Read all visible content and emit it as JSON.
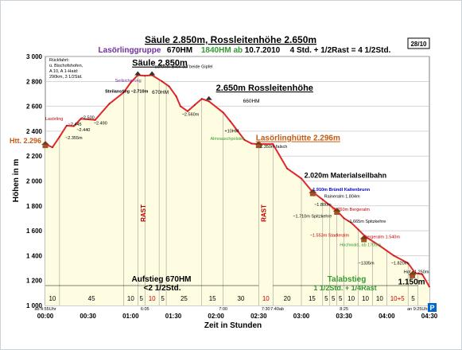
{
  "chart_data": {
    "type": "area",
    "title": "Säule 2.850m, Rossleitenhöhe 2.650m",
    "subtitle": {
      "group": "Lasörlinggruppe",
      "hm": "670HM",
      "start": "1840HM ab",
      "date": "10.7.2010",
      "duration": "4 Std. + 1/2Rast = 4 1/2Std."
    },
    "tour_number": "28/10",
    "xlabel": "Zeit in Stunden",
    "ylabel": "Höhen in m",
    "ylim": [
      1000,
      3000
    ],
    "xlim": [
      0,
      270
    ],
    "x_ticks": [
      {
        "v": 0,
        "label": "00:00"
      },
      {
        "v": 30,
        "label": "00:30"
      },
      {
        "v": 60,
        "label": "01:00"
      },
      {
        "v": 90,
        "label": "01:30"
      },
      {
        "v": 120,
        "label": "02:00"
      },
      {
        "v": 150,
        "label": "02:30"
      },
      {
        "v": 180,
        "label": "03:00"
      },
      {
        "v": 210,
        "label": "03:30"
      },
      {
        "v": 240,
        "label": "04:00"
      },
      {
        "v": 270,
        "label": "04:30"
      }
    ],
    "y_ticks": [
      {
        "v": 1000,
        "label": "1 000"
      },
      {
        "v": 1200,
        "label": "1 200"
      },
      {
        "v": 1400,
        "label": "1 400"
      },
      {
        "v": 1600,
        "label": "1 600"
      },
      {
        "v": 1800,
        "label": "1 800"
      },
      {
        "v": 2000,
        "label": "2 000"
      },
      {
        "v": 2200,
        "label": "2 200"
      },
      {
        "v": 2400,
        "label": "2 400"
      },
      {
        "v": 2600,
        "label": "2 600"
      },
      {
        "v": 2800,
        "label": "2 800"
      },
      {
        "v": 3000,
        "label": "3 000"
      }
    ],
    "series": [
      {
        "x": [
          0,
          5,
          10,
          15,
          20,
          25,
          35,
          45,
          55,
          60,
          65,
          70,
          75,
          82,
          87,
          92,
          95,
          100,
          105,
          110,
          115,
          125,
          130,
          140,
          145,
          150,
          160,
          170,
          180,
          188,
          195,
          205,
          210,
          215,
          220,
          225,
          235,
          245,
          255,
          260,
          265,
          270
        ],
        "y": [
          2296,
          2270,
          2355,
          2445,
          2440,
          2500,
          2490,
          2620,
          2710,
          2790,
          2850,
          2845,
          2850,
          2800,
          2760,
          2680,
          2600,
          2560,
          2610,
          2660,
          2640,
          2550,
          2480,
          2330,
          2300,
          2296,
          2296,
          2100,
          2020,
          1910,
          1850,
          1760,
          1700,
          1665,
          1610,
          1553,
          1480,
          1400,
          1340,
          1260,
          1250,
          1150
        ]
      }
    ],
    "annotations": [
      {
        "x": 42,
        "y": 2710,
        "text": "Steilanstieg ~2.710m",
        "color": "#000000",
        "bold": true
      },
      {
        "x": 49,
        "y": 2795,
        "text": "Seilsicherung",
        "color": "#7030a0",
        "bold": false
      },
      {
        "x": 0,
        "y": 2490,
        "text": "Lasörling",
        "color": "#c00000",
        "bold": false
      },
      {
        "x": 16,
        "y": 2445,
        "text": "~2.445",
        "color": "#000000",
        "bold": false
      },
      {
        "x": 25,
        "y": 2500,
        "text": "~2.500",
        "color": "#000000",
        "bold": false
      },
      {
        "x": 22,
        "y": 2398,
        "text": "~2.440",
        "color": "#000000",
        "bold": false
      },
      {
        "x": 34,
        "y": 2455,
        "text": "~2.490",
        "color": "#000000",
        "bold": false
      },
      {
        "x": 14,
        "y": 2335,
        "text": "~2.355m",
        "color": "#000000",
        "bold": false
      },
      {
        "x": 96,
        "y": 2525,
        "text": "~2.560m",
        "color": "#000000",
        "bold": false
      },
      {
        "x": 126,
        "y": 2390,
        "text": "+10HM",
        "color": "#000000",
        "bold": false
      },
      {
        "x": 116,
        "y": 2330,
        "text": "Almrauschpolster",
        "color": "#339933",
        "bold": false
      },
      {
        "x": 77,
        "y": 2908,
        "text": "schöner Blick auf beide Gipfel",
        "color": "#000000",
        "bold": false
      },
      {
        "x": 151,
        "y": 2265,
        "text": "2.350m falsch",
        "color": "#000000",
        "bold": false
      },
      {
        "x": 188,
        "y": 1920,
        "text": "1.910m Bründl Kaltenbrunn",
        "color": "#0000cc",
        "bold": true
      },
      {
        "x": 196,
        "y": 1865,
        "text": "Raineralm 1.804m",
        "color": "#000000",
        "bold": false
      },
      {
        "x": 189,
        "y": 1800,
        "text": "~1.800m",
        "color": "#000000",
        "bold": false
      },
      {
        "x": 201,
        "y": 1760,
        "text": "~1.760m Bergeralm",
        "color": "#c00000",
        "bold": false
      },
      {
        "x": 174,
        "y": 1705,
        "text": "~1.710m Spitzkehre",
        "color": "#000000",
        "bold": false
      },
      {
        "x": 212,
        "y": 1665,
        "text": "~1.665m Spitzkehre",
        "color": "#000000",
        "bold": false
      },
      {
        "x": 186,
        "y": 1553,
        "text": "~1.553m Stadleralm",
        "color": "#c00000",
        "bold": false
      },
      {
        "x": 224,
        "y": 1540,
        "text": "Bergeralm 1.540m",
        "color": "#c00000",
        "bold": false
      },
      {
        "x": 207,
        "y": 1475,
        "text": "Hochwald, ab 1700m",
        "color": "#339933",
        "bold": false
      },
      {
        "x": 220,
        "y": 1330,
        "text": "~1335m",
        "color": "#000000",
        "bold": false
      },
      {
        "x": 243,
        "y": 1330,
        "text": "~1.820m",
        "color": "#000000",
        "bold": false
      },
      {
        "x": 252,
        "y": 1260,
        "text": "Hof ~1.250m",
        "color": "#000000",
        "bold": false
      }
    ],
    "place_labels": [
      {
        "x": 61,
        "y": 2925,
        "text": "Säule 2.850m",
        "color": "#000000",
        "underline": true,
        "size": 11
      },
      {
        "x": 120,
        "y": 2725,
        "text": "2.650m Rossleitenhöhe",
        "color": "#000000",
        "underline": true,
        "size": 11
      },
      {
        "x": 148,
        "y": 2325,
        "text": "Lasörlinghütte 2.296m",
        "color": "#c55a11",
        "underline": true,
        "size": 10
      },
      {
        "x": 182,
        "y": 2025,
        "text": "2.020m Materialseilbahn",
        "color": "#000000",
        "underline": false,
        "size": 9
      },
      {
        "x": 248,
        "y": 1170,
        "text": "1.150m",
        "color": "#000000",
        "underline": false,
        "size": 10
      }
    ],
    "small_notes": [
      {
        "x": 75,
        "y": 2700,
        "text": "670HM"
      },
      {
        "x": 139,
        "y": 2630,
        "text": "660HM"
      }
    ],
    "rueckfahrt": [
      "Rückfahrt:",
      "ü. Bischofshofen,",
      "A 10, A 1-Haid:",
      "290km, 3 1/2Std."
    ],
    "start_label": "Htt. 2.296",
    "rast_labels": [
      {
        "x": 70.5,
        "text": "RAST"
      },
      {
        "x": 155,
        "text": "RAST"
      }
    ],
    "segments": [
      {
        "from": 0,
        "to": 10,
        "label": "10",
        "color": "#000000"
      },
      {
        "from": 10,
        "to": 55,
        "label": "45",
        "color": "#000000"
      },
      {
        "from": 55,
        "to": 65,
        "label": "10",
        "color": "#000000"
      },
      {
        "from": 65,
        "to": 70,
        "label": "5",
        "color": "#000000"
      },
      {
        "from": 70,
        "to": 80,
        "label": "10",
        "color": "#c00000"
      },
      {
        "from": 80,
        "to": 85,
        "label": "5",
        "color": "#000000"
      },
      {
        "from": 85,
        "to": 110,
        "label": "25",
        "color": "#000000"
      },
      {
        "from": 110,
        "to": 125,
        "label": "15",
        "color": "#000000"
      },
      {
        "from": 125,
        "to": 150,
        "label": "30",
        "color": "#000000"
      },
      {
        "from": 150,
        "to": 160,
        "label": "10",
        "color": "#c00000"
      },
      {
        "from": 160,
        "to": 180,
        "label": "20",
        "color": "#000000"
      },
      {
        "from": 180,
        "to": 195,
        "label": "15",
        "color": "#000000"
      },
      {
        "from": 195,
        "to": 200,
        "label": "5",
        "color": "#000000"
      },
      {
        "from": 200,
        "to": 205,
        "label": "5",
        "color": "#000000"
      },
      {
        "from": 205,
        "to": 210,
        "label": "5",
        "color": "#000000"
      },
      {
        "from": 210,
        "to": 220,
        "label": "10",
        "color": "#000000"
      },
      {
        "from": 220,
        "to": 230,
        "label": "10",
        "color": "#000000"
      },
      {
        "from": 230,
        "to": 240,
        "label": "10",
        "color": "#000000"
      },
      {
        "from": 240,
        "to": 255,
        "label": "10+5",
        "color": "#c00000"
      },
      {
        "from": 255,
        "to": 262,
        "label": "5",
        "color": "#000000"
      }
    ],
    "time_marks": [
      {
        "x": 0,
        "text": "ab 4:55Uhr"
      },
      {
        "x": 70,
        "text": "6:05"
      },
      {
        "x": 125,
        "text": "7:00"
      },
      {
        "x": 155,
        "text": "7:30"
      },
      {
        "x": 163,
        "text": "7:40ab"
      },
      {
        "x": 210,
        "text": "8:25"
      },
      {
        "x": 262,
        "text": "an 9:25Uhr"
      }
    ],
    "aufstieg": {
      "line1": "Aufstieg 670HM",
      "line2": "<2 1/2Std."
    },
    "talabstieg": {
      "line1": "Talabstieg",
      "line2": "1 1/2Std. + 1/4Rast"
    },
    "parking_label": "P",
    "colors": {
      "line": "#e0282c",
      "fill": "#fffde1",
      "grid": "#bdbdbd",
      "title_green": "#339933",
      "title_purple": "#7030a0",
      "title_red": "#c00000"
    }
  }
}
